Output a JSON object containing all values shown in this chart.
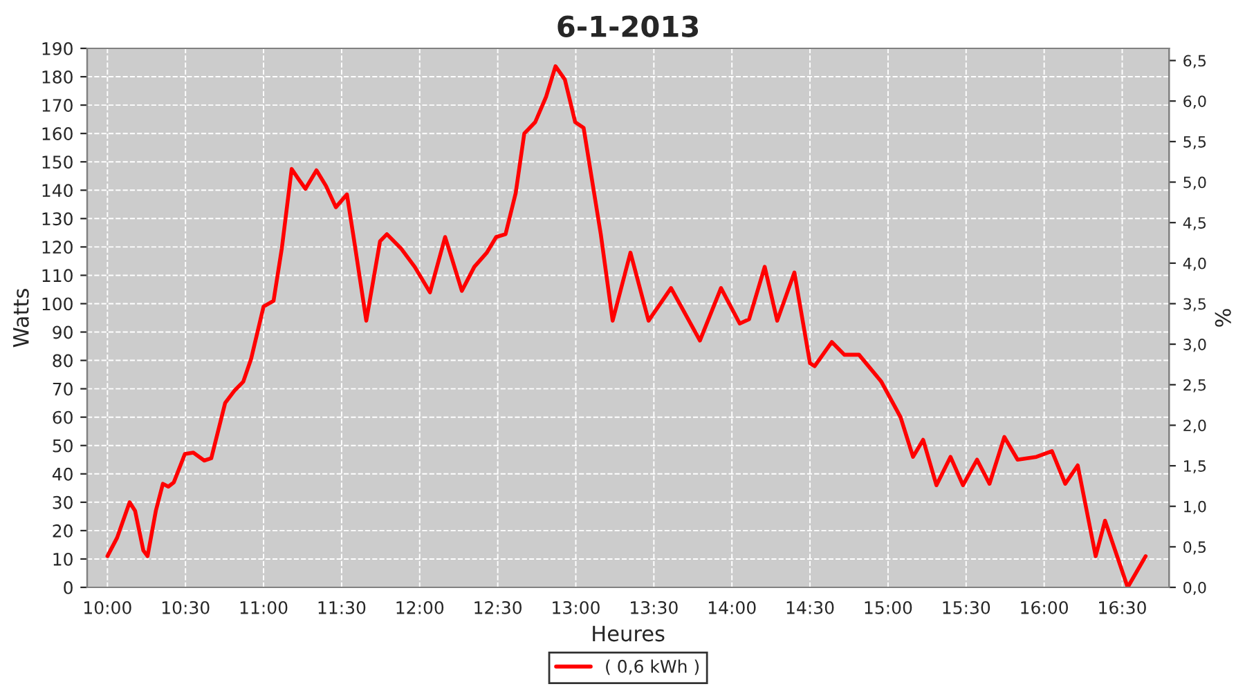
{
  "chart_data": {
    "type": "line",
    "title": "6-1-2013",
    "xlabel": "Heures",
    "ylabel": "Watts",
    "y2label": "%",
    "xlim": [
      9.87,
      16.8
    ],
    "xticks": [
      {
        "value": 10,
        "label": "10:00"
      },
      {
        "value": 10.5,
        "label": "10:30"
      },
      {
        "value": 11,
        "label": "11:00"
      },
      {
        "value": 11.5,
        "label": "11:30"
      },
      {
        "value": 12,
        "label": "12:00"
      },
      {
        "value": 12.5,
        "label": "12:30"
      },
      {
        "value": 13,
        "label": "13:00"
      },
      {
        "value": 13.5,
        "label": "13:30"
      },
      {
        "value": 14,
        "label": "14:00"
      },
      {
        "value": 14.5,
        "label": "14:30"
      },
      {
        "value": 15,
        "label": "15:00"
      },
      {
        "value": 15.5,
        "label": "15:30"
      },
      {
        "value": 16,
        "label": "16:00"
      },
      {
        "value": 16.5,
        "label": "16:30"
      }
    ],
    "ylim": [
      0,
      190
    ],
    "yticks": [
      0,
      10,
      20,
      30,
      40,
      50,
      60,
      70,
      80,
      90,
      100,
      110,
      120,
      130,
      140,
      150,
      160,
      170,
      180,
      190
    ],
    "y2lim": [
      0,
      6.65
    ],
    "y2ticks": [
      {
        "value": 0,
        "label": "0,0"
      },
      {
        "value": 0.5,
        "label": "0,5"
      },
      {
        "value": 1,
        "label": "1,0"
      },
      {
        "value": 1.5,
        "label": "1,5"
      },
      {
        "value": 2,
        "label": "2,0"
      },
      {
        "value": 2.5,
        "label": "2,5"
      },
      {
        "value": 3,
        "label": "3,0"
      },
      {
        "value": 3.5,
        "label": "3,5"
      },
      {
        "value": 4,
        "label": "4,0"
      },
      {
        "value": 4.5,
        "label": "4,5"
      },
      {
        "value": 5,
        "label": "5,0"
      },
      {
        "value": 5.5,
        "label": "5,5"
      },
      {
        "value": 6,
        "label": "6,0"
      },
      {
        "value": 6.5,
        "label": "6,5"
      }
    ],
    "grid": true,
    "legend": "bottom",
    "marker": "none",
    "line_style": "solid",
    "series": [
      {
        "name": "( 0,6 kWh )",
        "color": "#ff0000",
        "x": [
          10.0,
          10.062,
          10.142,
          10.177,
          10.23,
          10.257,
          10.31,
          10.355,
          10.39,
          10.425,
          10.496,
          10.55,
          10.62,
          10.665,
          10.754,
          10.816,
          10.87,
          10.92,
          11.0,
          11.064,
          11.117,
          11.18,
          11.223,
          11.268,
          11.339,
          11.4,
          11.463,
          11.534,
          11.578,
          11.658,
          11.746,
          11.79,
          11.88,
          11.968,
          12.066,
          12.163,
          12.2,
          12.27,
          12.35,
          12.43,
          12.49,
          12.55,
          12.615,
          12.67,
          12.74,
          12.81,
          12.87,
          12.93,
          12.996,
          13.05,
          13.11,
          13.16,
          13.236,
          13.35,
          13.466,
          13.61,
          13.795,
          13.93,
          14.05,
          14.11,
          14.21,
          14.29,
          14.4,
          14.5,
          14.53,
          14.64,
          14.72,
          14.814,
          14.957,
          15.08,
          15.16,
          15.225,
          15.31,
          15.4,
          15.48,
          15.57,
          15.65,
          15.745,
          15.83,
          15.95,
          16.05,
          16.135,
          16.215,
          16.33,
          16.39,
          16.535,
          16.65
        ],
        "values": [
          11,
          17.5,
          30,
          27,
          13,
          11,
          27,
          36.5,
          35.5,
          37,
          47,
          47.5,
          44.7,
          45.5,
          65,
          69.5,
          72.5,
          80.5,
          99,
          101,
          119.5,
          147.5,
          144,
          140.5,
          147,
          141.5,
          134,
          138.5,
          123,
          94,
          122,
          124.5,
          119.5,
          113,
          104,
          123.5,
          117,
          104.5,
          113,
          118,
          123.5,
          124.5,
          139,
          160,
          164,
          173,
          183.7,
          179,
          164,
          162,
          141.5,
          124.5,
          94,
          118,
          94,
          105.5,
          87,
          105.5,
          93,
          94.5,
          113,
          94,
          111,
          79,
          78,
          86.5,
          82,
          82,
          72.5,
          60,
          46,
          52,
          36,
          46,
          36,
          45,
          36.5,
          53,
          45,
          46,
          48,
          36.5,
          43,
          11,
          23.5,
          0,
          11
        ]
      }
    ]
  }
}
